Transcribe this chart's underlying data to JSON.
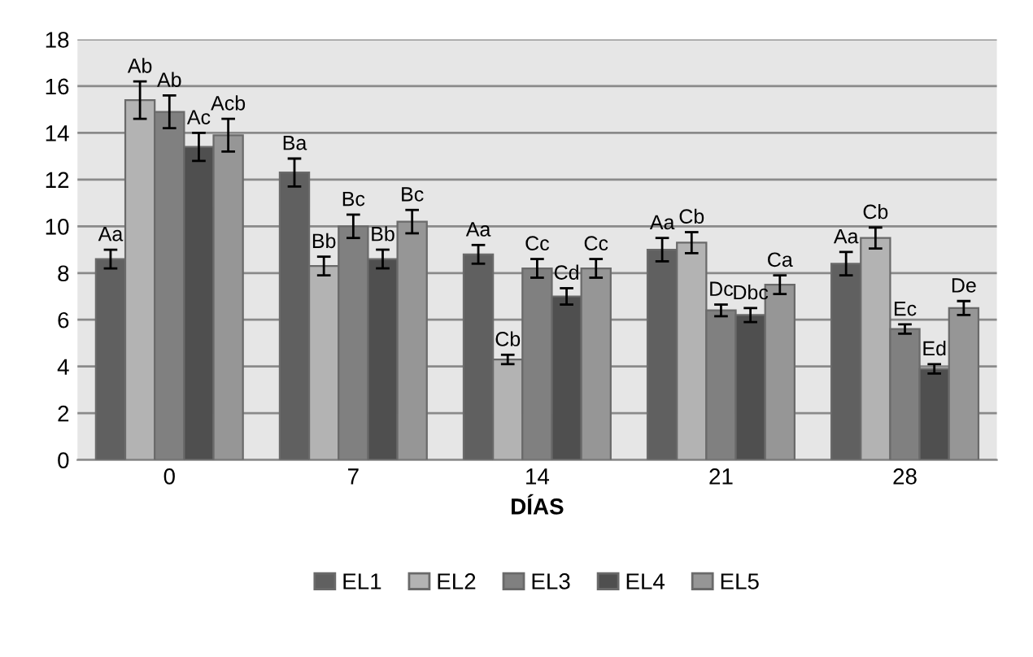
{
  "chart_data": {
    "type": "bar",
    "xlabel": "DÍAS",
    "categories": [
      "0",
      "7",
      "14",
      "21",
      "28"
    ],
    "series": [
      {
        "name": "EL1",
        "color": "#606060",
        "values": [
          8.6,
          12.3,
          8.8,
          9.0,
          8.4
        ],
        "errors": [
          0.4,
          0.6,
          0.4,
          0.5,
          0.5
        ],
        "value_labels": [
          "Aa",
          "Ba",
          "Aa",
          "Aa",
          "Aa"
        ]
      },
      {
        "name": "EL2",
        "color": "#b3b3b3",
        "values": [
          15.4,
          8.3,
          4.3,
          9.3,
          9.5
        ],
        "errors": [
          0.8,
          0.4,
          0.2,
          0.45,
          0.45
        ],
        "value_labels": [
          "Ab",
          "Bb",
          "Cb",
          "Cb",
          "Cb"
        ]
      },
      {
        "name": "EL3",
        "color": "#808080",
        "values": [
          14.9,
          10.0,
          8.2,
          6.4,
          5.6
        ],
        "errors": [
          0.7,
          0.5,
          0.4,
          0.25,
          0.2
        ],
        "value_labels": [
          "Ab",
          "Bc",
          "Cc",
          "Dc",
          "Ec"
        ]
      },
      {
        "name": "EL4",
        "color": "#4f4f4f",
        "values": [
          13.4,
          8.6,
          7.0,
          6.2,
          3.9
        ],
        "errors": [
          0.6,
          0.4,
          0.35,
          0.3,
          0.2
        ],
        "value_labels": [
          "Ac",
          "Bb",
          "Cd",
          "Dbc",
          "Ed"
        ]
      },
      {
        "name": "EL5",
        "color": "#969696",
        "values": [
          13.9,
          10.2,
          8.2,
          7.5,
          6.5
        ],
        "errors": [
          0.7,
          0.5,
          0.4,
          0.4,
          0.3
        ],
        "value_labels": [
          "Acb",
          "Bc",
          "Cc",
          "Ca",
          "De"
        ]
      }
    ],
    "ylim": [
      0,
      18
    ],
    "yticks": [
      0,
      2,
      4,
      6,
      8,
      10,
      12,
      14,
      16,
      18
    ],
    "grid": "y",
    "legend": "bottom"
  }
}
